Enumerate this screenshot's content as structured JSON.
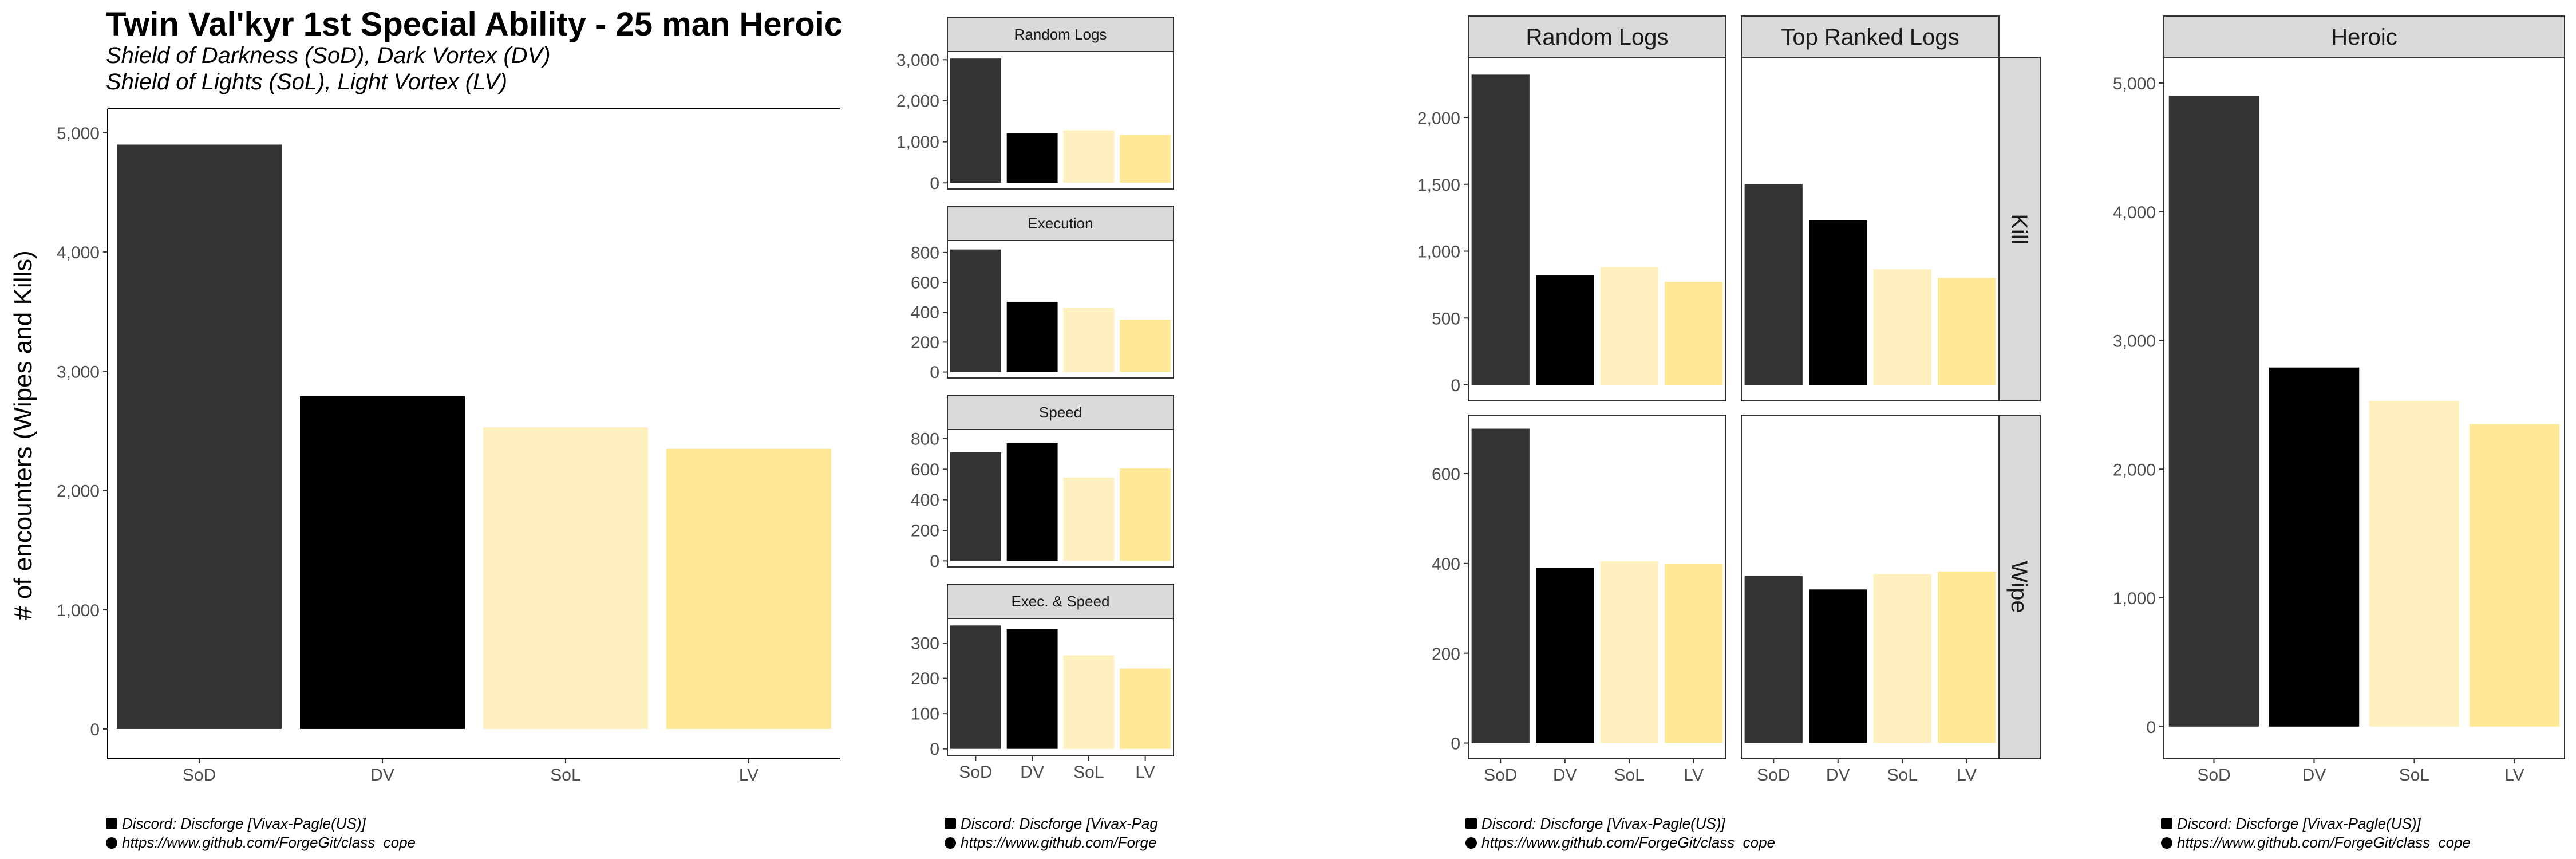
{
  "colors": {
    "SoD": "#333333",
    "DV": "#000000",
    "SoL": "#FFF0BF",
    "LV": "#FFE999",
    "strip_bg": "#d9d9d9",
    "tick_text": "#4d4d4d"
  },
  "captions": {
    "discord": "Discord: Discforge [Vivax-Pagle(US)]",
    "github": "https://www.github.com/ForgeGit/class_cope",
    "discord_clipped": "Discord: Discforge [Vivax-Pag",
    "github_clipped": "https://www.github.com/Forge"
  },
  "chart_data": [
    {
      "id": "main",
      "type": "bar",
      "title": "Twin Val'kyr 1st Special Ability - 25 man Heroic",
      "subtitle_lines": [
        "Shield of Darkness (SoD), Dark Vortex (DV)",
        "Shield of Lights (SoL), Light Vortex (LV)"
      ],
      "ylabel": "# of encounters (Wipes and Kills)",
      "categories": [
        "SoD",
        "DV",
        "SoL",
        "LV"
      ],
      "values": [
        4900,
        2790,
        2530,
        2350
      ],
      "ylim": [
        0,
        5200
      ],
      "yticks": [
        0,
        1000,
        2000,
        3000,
        4000,
        5000
      ],
      "ytick_labels": [
        "0",
        "1,000",
        "2,000",
        "3,000",
        "4,000",
        "5,000"
      ],
      "grid": false
    },
    {
      "id": "facet-by-selection",
      "type": "bar",
      "categories": [
        "SoD",
        "DV",
        "SoL",
        "LV"
      ],
      "panels": [
        {
          "label": "Random Logs",
          "values": [
            3030,
            1210,
            1280,
            1170
          ],
          "ylim": [
            -150,
            3200
          ],
          "yticks": [
            0,
            1000,
            2000,
            3000
          ],
          "ytick_labels": [
            "0",
            "1,000",
            "2,000",
            "3,000"
          ]
        },
        {
          "label": "Execution",
          "values": [
            820,
            470,
            430,
            350
          ],
          "ylim": [
            -40,
            880
          ],
          "yticks": [
            0,
            200,
            400,
            600,
            800
          ],
          "ytick_labels": [
            "0",
            "200",
            "400",
            "600",
            "800"
          ]
        },
        {
          "label": "Speed",
          "values": [
            710,
            770,
            545,
            605
          ],
          "ylim": [
            -40,
            860
          ],
          "yticks": [
            0,
            200,
            400,
            600,
            800
          ],
          "ytick_labels": [
            "0",
            "200",
            "400",
            "600",
            "800"
          ]
        },
        {
          "label": "Exec. & Speed",
          "values": [
            350,
            340,
            265,
            228
          ],
          "ylim": [
            -20,
            370
          ],
          "yticks": [
            0,
            100,
            200,
            300
          ],
          "ytick_labels": [
            "0",
            "100",
            "200",
            "300"
          ]
        }
      ]
    },
    {
      "id": "facet-grid-kill-wipe",
      "type": "bar",
      "categories": [
        "SoD",
        "DV",
        "SoL",
        "LV"
      ],
      "col_labels": [
        "Random Logs",
        "Top Ranked Logs"
      ],
      "rows": [
        {
          "label": "Kill",
          "ylim": [
            -120,
            2450
          ],
          "yticks": [
            0,
            500,
            1000,
            1500,
            2000
          ],
          "ytick_labels": [
            "0",
            "500",
            "1,000",
            "1,500",
            "2,000"
          ],
          "cells": [
            [
              2320,
              820,
              880,
              770
            ],
            [
              1500,
              1230,
              865,
              800
            ]
          ]
        },
        {
          "label": "Wipe",
          "ylim": [
            -35,
            730
          ],
          "yticks": [
            0,
            200,
            400,
            600
          ],
          "ytick_labels": [
            "0",
            "200",
            "400",
            "600"
          ],
          "cells": [
            [
              700,
              390,
              405,
              400
            ],
            [
              372,
              342,
              376,
              382
            ]
          ]
        }
      ]
    },
    {
      "id": "heroic",
      "type": "bar",
      "strip_label": "Heroic",
      "categories": [
        "SoD",
        "DV",
        "SoL",
        "LV"
      ],
      "values": [
        4900,
        2790,
        2530,
        2350
      ],
      "ylim": [
        -250,
        5200
      ],
      "yticks": [
        0,
        1000,
        2000,
        3000,
        4000,
        5000
      ],
      "ytick_labels": [
        "0",
        "1,000",
        "2,000",
        "3,000",
        "4,000",
        "5,000"
      ]
    }
  ]
}
